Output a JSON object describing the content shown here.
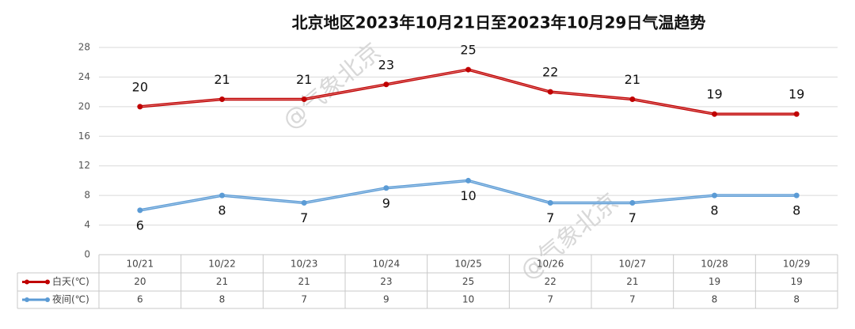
{
  "chart_data": {
    "type": "line",
    "title": "北京地区2023年10月21日至2023年10月29日气温趋势",
    "watermark": "@气象北京",
    "categories": [
      "10/21",
      "10/22",
      "10/23",
      "10/24",
      "10/25",
      "10/26",
      "10/27",
      "10/28",
      "10/29"
    ],
    "series": [
      {
        "name": "白天(℃)",
        "color": "#c00000",
        "values": [
          20,
          21,
          21,
          23,
          25,
          22,
          21,
          19,
          19
        ]
      },
      {
        "name": "夜间(℃)",
        "color": "#5b9bd5",
        "values": [
          6,
          8,
          7,
          9,
          10,
          7,
          7,
          8,
          8
        ]
      }
    ],
    "ylim": [
      0,
      28
    ],
    "yticks": [
      0,
      4,
      8,
      12,
      16,
      20,
      24,
      28
    ],
    "grid": true
  }
}
